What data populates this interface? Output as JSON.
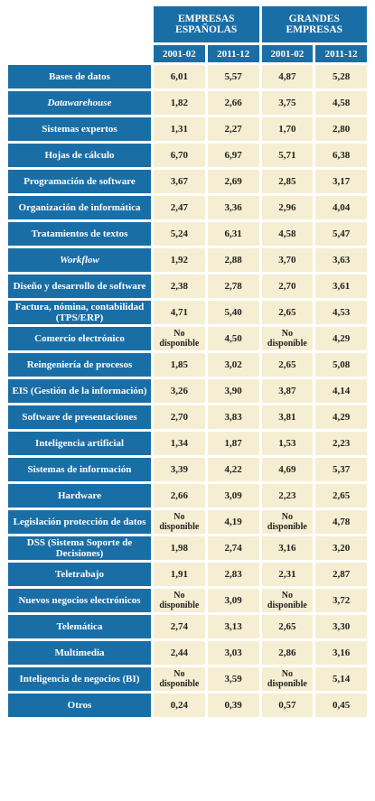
{
  "table": {
    "groups": [
      "EMPRESAS ESPAÑOLAS",
      "GRANDES EMPRESAS"
    ],
    "years": [
      "2001-02",
      "2011-12",
      "2001-02",
      "2011-12"
    ],
    "rows": [
      [
        "Bases de datos",
        "6,01",
        "5,57",
        "4,87",
        "5,28"
      ],
      [
        "Datawarehouse",
        "1,82",
        "2,66",
        "3,75",
        "4,58"
      ],
      [
        "Sistemas expertos",
        "1,31",
        "2,27",
        "1,70",
        "2,80"
      ],
      [
        "Hojas de cálculo",
        "6,70",
        "6,97",
        "5,71",
        "6,38"
      ],
      [
        "Programación de software",
        "3,67",
        "2,69",
        "2,85",
        "3,17"
      ],
      [
        "Organización de informática",
        "2,47",
        "3,36",
        "2,96",
        "4,04"
      ],
      [
        "Tratamientos de textos",
        "5,24",
        "6,31",
        "4,58",
        "5,47"
      ],
      [
        "Workflow",
        "1,92",
        "2,88",
        "3,70",
        "3,63"
      ],
      [
        "Diseño y desarrollo de software",
        "2,38",
        "2,78",
        "2,70",
        "3,61"
      ],
      [
        "Factura, nómina, contabilidad (TPS/ERP)",
        "4,71",
        "5,40",
        "2,65",
        "4,53"
      ],
      [
        "Comercio electrónico",
        "No disponible",
        "4,50",
        "No disponible",
        "4,29"
      ],
      [
        "Reingeniería de procesos",
        "1,85",
        "3,02",
        "2,65",
        "5,08"
      ],
      [
        "EIS (Gestión de la información)",
        "3,26",
        "3,90",
        "3,87",
        "4,14"
      ],
      [
        "Software de presentaciones",
        "2,70",
        "3,83",
        "3,81",
        "4,29"
      ],
      [
        "Inteligencia artificial",
        "1,34",
        "1,87",
        "1,53",
        "2,23"
      ],
      [
        "Sistemas de información",
        "3,39",
        "4,22",
        "4,69",
        "5,37"
      ],
      [
        "Hardware",
        "2,66",
        "3,09",
        "2,23",
        "2,65"
      ],
      [
        "Legislación protección de datos",
        "No disponible",
        "4,19",
        "No disponible",
        "4,78"
      ],
      [
        "DSS (Sistema Soporte de Decisiones)",
        "1,98",
        "2,74",
        "3,16",
        "3,20"
      ],
      [
        "Teletrabajo",
        "1,91",
        "2,83",
        "2,31",
        "2,87"
      ],
      [
        "Nuevos negocios electrónicos",
        "No disponible",
        "3,09",
        "No disponible",
        "3,72"
      ],
      [
        "Telemática",
        "2,74",
        "3,13",
        "2,65",
        "3,30"
      ],
      [
        "Multimedia",
        "2,44",
        "3,03",
        "2,86",
        "3,16"
      ],
      [
        "Inteligencia de negocios (BI)",
        "No disponible",
        "3,59",
        "No disponible",
        "5,14"
      ],
      [
        "Otros",
        "0,24",
        "0,39",
        "0,57",
        "0,45"
      ]
    ]
  }
}
